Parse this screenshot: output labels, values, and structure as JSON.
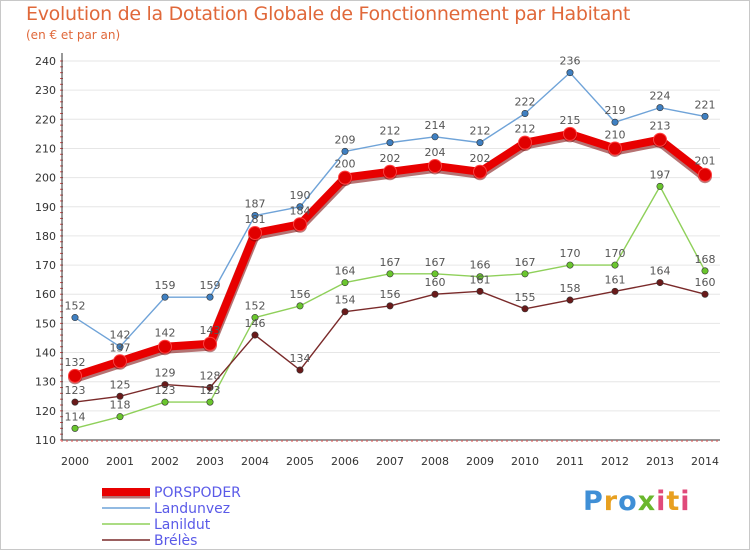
{
  "title": "Evolution de la Dotation Globale de Fonctionnement par Habitant",
  "subtitle": "(en € et par an)",
  "logo": {
    "text": "Proxiti",
    "colors": [
      "#3f8fd6",
      "#e8a020",
      "#6ab72c",
      "#e04a7a"
    ]
  },
  "chart_data": {
    "type": "line",
    "title": "Evolution de la Dotation Globale de Fonctionnement par Habitant",
    "subtitle": "(en € et par an)",
    "xlabel": "",
    "ylabel": "",
    "x": [
      "2000",
      "2001",
      "2002",
      "2003",
      "2004",
      "2005",
      "2006",
      "2007",
      "2008",
      "2009",
      "2010",
      "2011",
      "2012",
      "2013",
      "2014"
    ],
    "ylim": [
      110,
      240
    ],
    "yticks": [
      110,
      120,
      130,
      140,
      150,
      160,
      170,
      180,
      190,
      200,
      210,
      220,
      230,
      240
    ],
    "grid": "horizontal",
    "legend_position": "bottom-left",
    "series": [
      {
        "name": "Landunvez",
        "color": "#6fa3d8",
        "marker": "#3f80c2",
        "values": [
          152,
          142,
          159,
          159,
          187,
          190,
          209,
          212,
          214,
          212,
          222,
          236,
          219,
          224,
          221
        ],
        "labels": [
          "152",
          "142",
          "159",
          "159",
          "187",
          "190",
          "209",
          "212",
          "214",
          "212",
          "222",
          "236",
          "219",
          "224",
          "221"
        ]
      },
      {
        "name": "Lanildut",
        "color": "#8fd05a",
        "marker": "#6ac62e",
        "values": [
          114,
          118,
          123,
          123,
          152,
          156,
          164,
          167,
          167,
          166,
          167,
          170,
          170,
          197,
          168
        ],
        "labels": [
          "114",
          "118",
          "123",
          "123",
          "152",
          "156",
          "164",
          "167",
          "167",
          "166",
          "167",
          "170",
          "170",
          "197",
          "168"
        ]
      },
      {
        "name": "Brélès",
        "color": "#7a2a2a",
        "marker": "#6a1a1a",
        "values": [
          123,
          125,
          129,
          128,
          146,
          134,
          154,
          156,
          160,
          161,
          155,
          158,
          161,
          164,
          160
        ],
        "labels": [
          "123",
          "125",
          "129",
          "128",
          "146",
          "134",
          "154",
          "156",
          "160",
          "161",
          "155",
          "158",
          "161",
          "164",
          "160"
        ]
      },
      {
        "name": "PORSPODER",
        "color": "#e80000",
        "marker": "#e00000",
        "values": [
          132,
          137,
          142,
          143,
          181,
          184,
          200,
          202,
          204,
          202,
          212,
          215,
          210,
          213,
          201
        ],
        "labels": [
          "132",
          "137",
          "142",
          "143",
          "181",
          "184",
          "200",
          "202",
          "204",
          "202",
          "212",
          "215",
          "210",
          "213",
          "201"
        ]
      }
    ]
  }
}
